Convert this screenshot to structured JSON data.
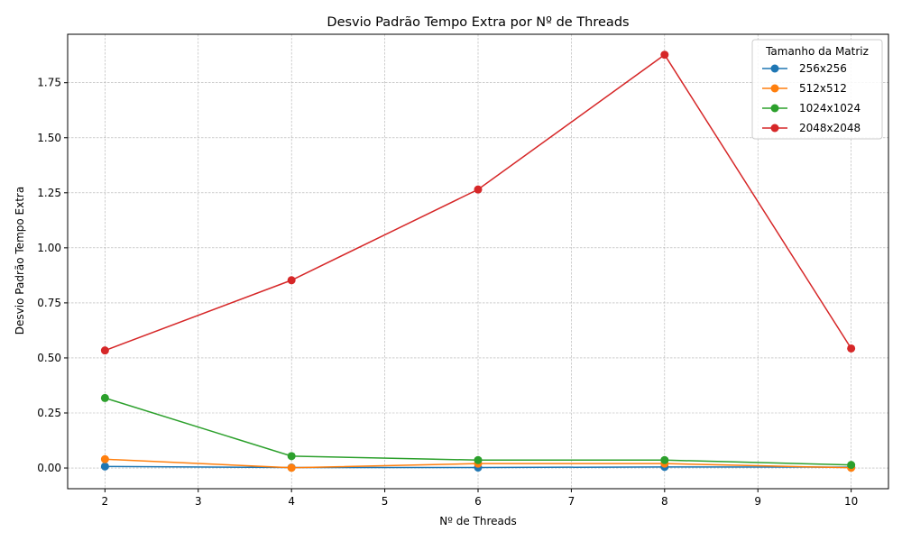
{
  "chart_data": {
    "type": "line",
    "title": "Desvio Padrão Tempo Extra por Nº de Threads",
    "xlabel": "Nº de Threads",
    "ylabel": "Desvio Padrão Tempo Extra",
    "x": [
      2,
      4,
      6,
      8,
      10
    ],
    "xticks": [
      "2",
      "3",
      "4",
      "5",
      "6",
      "7",
      "8",
      "9",
      "10"
    ],
    "yticks": [
      "0.00",
      "0.25",
      "0.50",
      "0.75",
      "1.00",
      "1.25",
      "1.50",
      "1.75"
    ],
    "xlim": [
      1.6,
      10.4
    ],
    "ylim": [
      -0.094,
      1.97
    ],
    "grid": true,
    "legend": {
      "title": "Tamanho da Matriz",
      "placement": "top-right"
    },
    "series": [
      {
        "name": "256x256",
        "color": "#1f77b4",
        "values": [
          0.007,
          0.002,
          0.002,
          0.005,
          0.004
        ]
      },
      {
        "name": "512x512",
        "color": "#ff7f0e",
        "values": [
          0.04,
          0.001,
          0.02,
          0.02,
          0.001
        ]
      },
      {
        "name": "1024x1024",
        "color": "#2ca02c",
        "values": [
          0.318,
          0.054,
          0.036,
          0.036,
          0.014
        ]
      },
      {
        "name": "2048x2048",
        "color": "#d62728",
        "values": [
          0.534,
          0.853,
          1.265,
          1.877,
          0.543
        ]
      }
    ]
  }
}
